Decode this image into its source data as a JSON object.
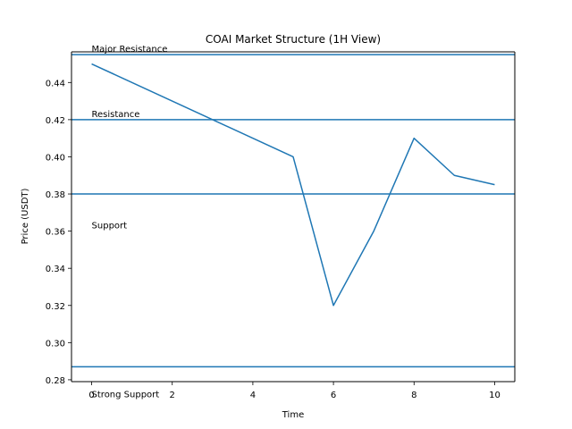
{
  "chart_data": {
    "type": "line",
    "title": "COAI Market Structure (1H View)",
    "xlabel": "Time",
    "ylabel": "Price (USDT)",
    "xlim": [
      -0.5,
      10.5
    ],
    "ylim": [
      0.279,
      0.4565
    ],
    "xticks": [
      0,
      2,
      4,
      6,
      8,
      10
    ],
    "yticks": [
      0.28,
      0.3,
      0.32,
      0.34,
      0.36,
      0.38,
      0.4,
      0.42,
      0.44
    ],
    "ytick_labels": [
      "0.28",
      "0.30",
      "0.32",
      "0.34",
      "0.36",
      "0.38",
      "0.40",
      "0.42",
      "0.44"
    ],
    "grid": false,
    "line_color": "#1f77b4",
    "series": [
      {
        "x": [
          0,
          5,
          6,
          7,
          8,
          9,
          10
        ],
        "y": [
          0.45,
          0.4,
          0.32,
          0.36,
          0.41,
          0.39,
          0.385
        ]
      }
    ],
    "levels": [
      {
        "value": 0.455,
        "label": "Major Resistance",
        "label_x": 0,
        "label_y": 0.4565
      },
      {
        "value": 0.42,
        "label": "Resistance",
        "label_x": 0,
        "label_y": 0.4215
      },
      {
        "value": 0.38,
        "label": "Support",
        "label_x": 0,
        "label_y": 0.3615
      },
      {
        "value": 0.287,
        "label": "Strong Support",
        "label_x": 0,
        "label_y": 0.2705
      }
    ]
  }
}
